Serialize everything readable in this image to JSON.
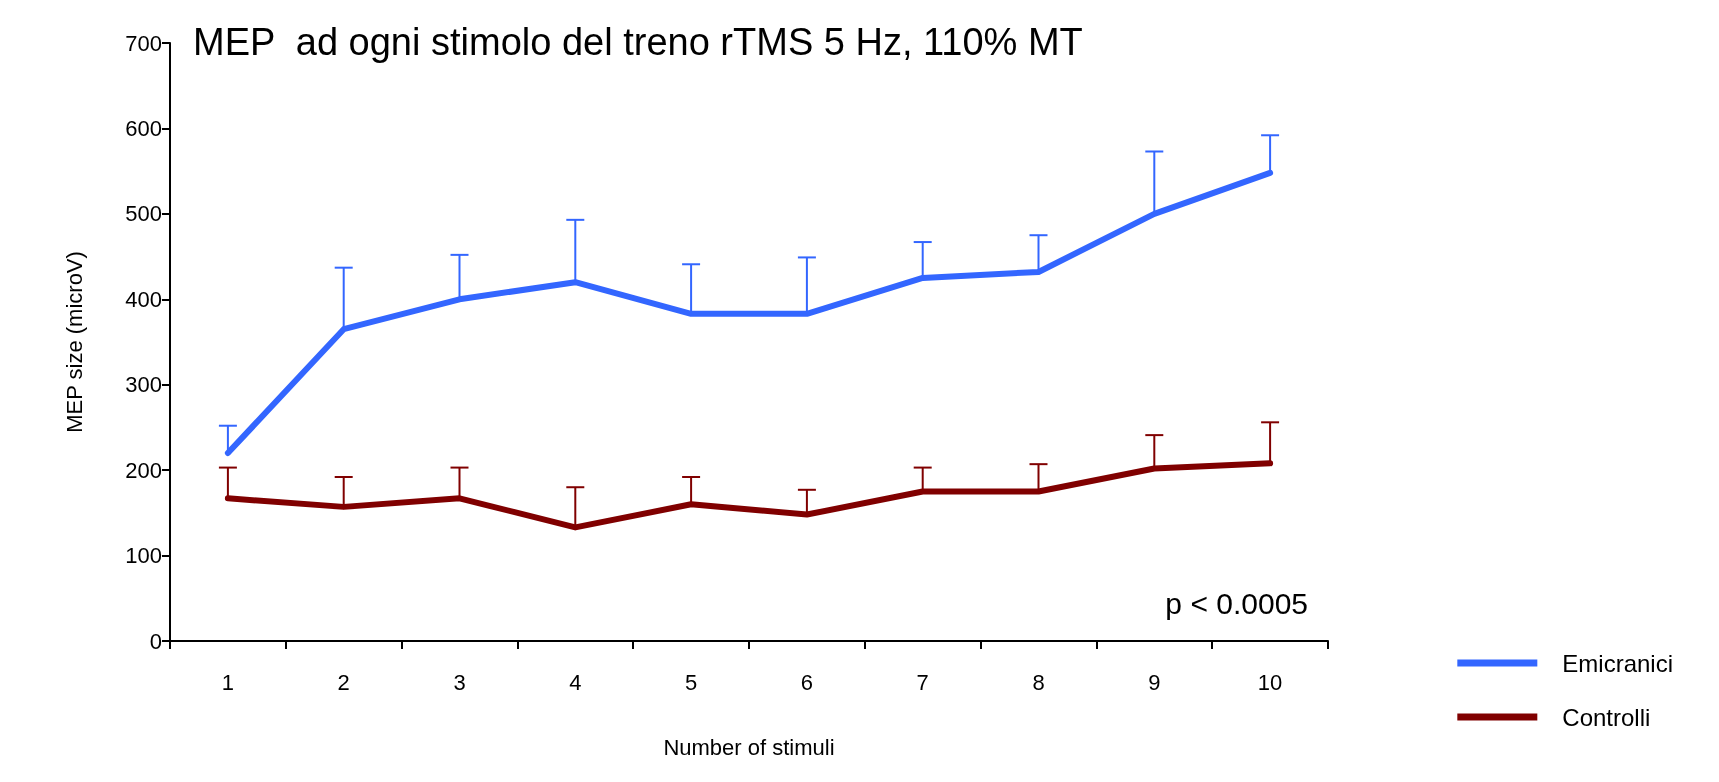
{
  "chart_data": {
    "type": "line",
    "title": "MEP  ad ogni stimolo del treno rTMS 5 Hz, 110% MT",
    "xlabel": "Number of stimuli",
    "ylabel": "MEP size (microV)",
    "categories": [
      "1",
      "2",
      "3",
      "4",
      "5",
      "6",
      "7",
      "8",
      "9",
      "10"
    ],
    "ylim": [
      0,
      700
    ],
    "yticks": [
      0,
      100,
      200,
      300,
      400,
      500,
      600,
      700
    ],
    "grid": false,
    "legend": "bottom right",
    "marker": "none",
    "line_style": "solid",
    "annotations": [
      "p < 0.0005"
    ],
    "series": [
      {
        "name": "Emicranici",
        "color": "#3366ff",
        "values": [
          220,
          365,
          400,
          420,
          383,
          383,
          425,
          432,
          500,
          548
        ],
        "errors": [
          [
            220,
            252
          ],
          [
            365,
            437
          ],
          [
            400,
            452
          ],
          [
            420,
            493
          ],
          [
            383,
            441
          ],
          [
            383,
            449
          ],
          [
            425,
            467
          ],
          [
            432,
            475
          ],
          [
            500,
            573
          ],
          [
            548,
            592
          ]
        ]
      },
      {
        "name": "Controlli",
        "color": "#800000",
        "values": [
          167,
          157,
          167,
          133,
          160,
          148,
          175,
          175,
          202,
          208
        ],
        "errors": [
          [
            167,
            203
          ],
          [
            157,
            192
          ],
          [
            167,
            203
          ],
          [
            133,
            180
          ],
          [
            160,
            192
          ],
          [
            148,
            177
          ],
          [
            175,
            203
          ],
          [
            175,
            207
          ],
          [
            202,
            241
          ],
          [
            208,
            256
          ]
        ]
      }
    ]
  }
}
